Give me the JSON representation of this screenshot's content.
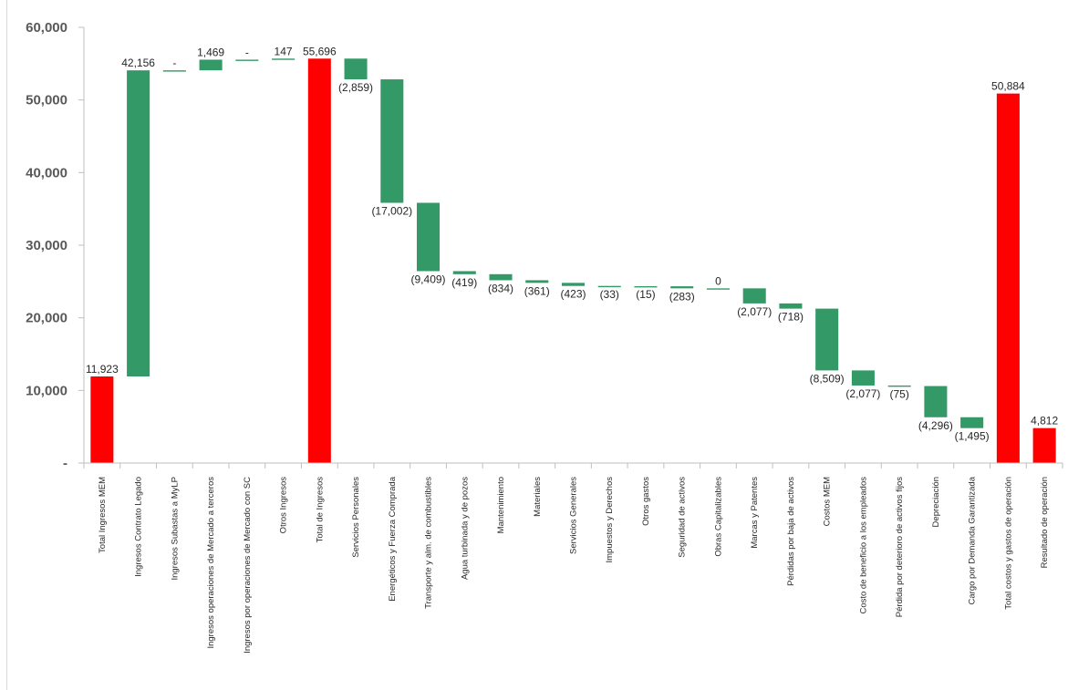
{
  "chart_data": {
    "type": "bar",
    "subtype": "waterfall",
    "ylim": [
      0,
      60000
    ],
    "yticks": [
      0,
      10000,
      20000,
      30000,
      40000,
      50000,
      60000
    ],
    "ytick_labels": [
      "-",
      "10,000",
      "20,000",
      "30,000",
      "40,000",
      "50,000",
      "60,000"
    ],
    "grid": false,
    "colors": {
      "increase": "#339966",
      "decrease": "#339966",
      "total": "#ff0000",
      "axis": "#bfbfbf"
    },
    "items": [
      {
        "category": "Total Ingresos MEM",
        "kind": "total",
        "value": 11923,
        "label": "11,923"
      },
      {
        "category": "Ingresos Contrato Legado",
        "kind": "delta",
        "value": 42156,
        "label": "42,156"
      },
      {
        "category": "Ingresos Subastas a MyLP",
        "kind": "delta",
        "value": 0,
        "label": "-"
      },
      {
        "category": "Ingresos operaciones de Mercado a terceros",
        "kind": "delta",
        "value": 1469,
        "label": "1,469"
      },
      {
        "category": "Ingresos por operaciones de Mercado con SC",
        "kind": "delta",
        "value": 0,
        "label": "-"
      },
      {
        "category": "Otros Ingresos",
        "kind": "delta",
        "value": 147,
        "label": "147"
      },
      {
        "category": "Total de Ingresos",
        "kind": "total",
        "value": 55696,
        "label": "55,696"
      },
      {
        "category": "Servicios Personales",
        "kind": "delta",
        "value": -2859,
        "label": "(2,859)"
      },
      {
        "category": "Energéticos y Fuerza Comprada",
        "kind": "delta",
        "value": -17002,
        "label": "(17,002)"
      },
      {
        "category": "Transporte y alm. de combustibles",
        "kind": "delta",
        "value": -9409,
        "label": "(9,409)"
      },
      {
        "category": "Agua turbinada y de pozos",
        "kind": "delta",
        "value": -419,
        "label": "(419)"
      },
      {
        "category": "Mantenimiento",
        "kind": "delta",
        "value": -834,
        "label": "(834)"
      },
      {
        "category": "Materiales",
        "kind": "delta",
        "value": -361,
        "label": "(361)"
      },
      {
        "category": "Servicios Generales",
        "kind": "delta",
        "value": -423,
        "label": "(423)"
      },
      {
        "category": "Impuestos y Derechos",
        "kind": "delta",
        "value": -33,
        "label": "(33)"
      },
      {
        "category": "Otros gastos",
        "kind": "delta",
        "value": -15,
        "label": "(15)"
      },
      {
        "category": "Seguridad de activos",
        "kind": "delta",
        "value": -283,
        "label": "(283)"
      },
      {
        "category": "Obras Capitalizables",
        "kind": "delta",
        "value": 0,
        "label": "0"
      },
      {
        "category": "Marcas y Patentes",
        "kind": "delta",
        "value": -2077,
        "label": "(2,077)"
      },
      {
        "category": "Pérdidas por baja de activos",
        "kind": "delta",
        "value": -718,
        "label": "(718)"
      },
      {
        "category": "Costos MEM",
        "kind": "delta",
        "value": -8509,
        "label": "(8,509)"
      },
      {
        "category": "Costo de beneficio a los empleados",
        "kind": "delta",
        "value": -2077,
        "label": "(2,077)"
      },
      {
        "category": "Pérdida por deterioro de activos fijos",
        "kind": "delta",
        "value": -75,
        "label": "(75)"
      },
      {
        "category": "Depreciación",
        "kind": "delta",
        "value": -4296,
        "label": "(4,296)"
      },
      {
        "category": "Cargo por Demanda Garantizada",
        "kind": "delta",
        "value": -1495,
        "label": "(1,495)"
      },
      {
        "category": "Total costos y gastos de operación",
        "kind": "total",
        "value": 50884,
        "label": "50,884"
      },
      {
        "category": "Resultado de operación",
        "kind": "total",
        "value": 4812,
        "label": "4,812"
      }
    ]
  }
}
